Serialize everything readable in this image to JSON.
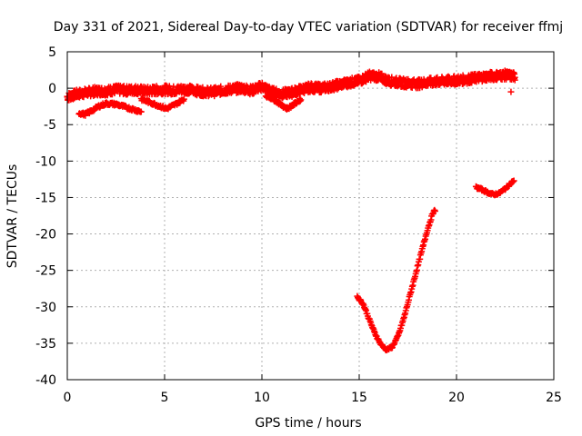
{
  "chart_data": {
    "type": "scatter",
    "title": "Day 331 of 2021, Sidereal Day-to-day VTEC variation (SDTVAR) for receiver ffmj",
    "xlabel": "GPS time / hours",
    "ylabel": "SDTVAR / TECUs",
    "xlim": [
      0,
      25
    ],
    "ylim": [
      -40,
      5
    ],
    "xticks": [
      0,
      5,
      10,
      15,
      20,
      25
    ],
    "yticks": [
      5,
      0,
      -5,
      -10,
      -15,
      -20,
      -25,
      -30,
      -35,
      -40
    ],
    "grid": true,
    "marker_color": "#ff0000",
    "series": [
      {
        "name": "main-band",
        "band_half_width": 0.6,
        "x": [
          0,
          0.5,
          1,
          1.5,
          2,
          2.5,
          3,
          3.5,
          4,
          4.5,
          5,
          5.5,
          6,
          6.5,
          7,
          7.5,
          8,
          8.5,
          9,
          9.5,
          10,
          10.5,
          11,
          11.5,
          12,
          12.5,
          13,
          13.5,
          14,
          14.5,
          15,
          15.5,
          16,
          16.5,
          17,
          17.5,
          18,
          18.5,
          19,
          19.5,
          20,
          20.5,
          21,
          21.5,
          22,
          22.5,
          23
        ],
        "y": [
          -1.2,
          -0.8,
          -0.6,
          -0.4,
          -0.4,
          -0.2,
          -0.3,
          -0.2,
          -0.4,
          -0.3,
          -0.2,
          -0.3,
          -0.1,
          -0.3,
          -0.5,
          -0.5,
          -0.3,
          -0.1,
          0,
          -0.3,
          0.3,
          -0.5,
          -0.8,
          -0.6,
          -0.2,
          0.1,
          0,
          0.2,
          0.5,
          0.8,
          1.0,
          1.7,
          1.6,
          1.0,
          0.8,
          0.7,
          0.6,
          0.8,
          0.9,
          1.0,
          1.1,
          1.2,
          1.4,
          1.6,
          1.7,
          1.8,
          1.6
        ]
      },
      {
        "name": "lower-arc-1",
        "band_half_width": 0.2,
        "x": [
          0.6,
          0.9,
          1.2,
          1.6,
          2.0,
          2.5,
          3.0,
          3.5,
          3.8
        ],
        "y": [
          -3.4,
          -3.6,
          -3.2,
          -2.5,
          -2.1,
          -2.2,
          -2.6,
          -3.0,
          -3.2
        ]
      },
      {
        "name": "lower-arc-2",
        "band_half_width": 0.2,
        "x": [
          3.8,
          4.3,
          4.8,
          5.1,
          5.5,
          6.0
        ],
        "y": [
          -1.5,
          -2.0,
          -2.5,
          -2.8,
          -2.3,
          -1.5
        ]
      },
      {
        "name": "lower-arc-3",
        "band_half_width": 0.2,
        "x": [
          10.2,
          10.6,
          11.0,
          11.3,
          11.6,
          12.0
        ],
        "y": [
          -1.0,
          -1.5,
          -2.3,
          -2.8,
          -2.3,
          -1.5
        ]
      },
      {
        "name": "deep-arc",
        "band_half_width": 0.15,
        "x": [
          14.9,
          15.2,
          15.5,
          15.8,
          16.1,
          16.4,
          16.7,
          17.0,
          17.3,
          17.6,
          17.9,
          18.2,
          18.5,
          18.8,
          18.9
        ],
        "y": [
          -28.6,
          -29.6,
          -31.6,
          -33.6,
          -35.1,
          -35.9,
          -35.5,
          -34.0,
          -31.5,
          -28.5,
          -25.5,
          -22.5,
          -19.5,
          -17.0,
          -16.8
        ]
      },
      {
        "name": "upper-right-arc",
        "band_half_width": 0.15,
        "x": [
          21.0,
          21.3,
          21.6,
          21.9,
          22.2,
          22.5,
          22.8,
          22.95
        ],
        "y": [
          -13.6,
          -13.9,
          -14.3,
          -14.6,
          -14.4,
          -13.8,
          -13.0,
          -12.7
        ]
      },
      {
        "name": "isolated-point",
        "band_half_width": 0,
        "x": [
          22.8
        ],
        "y": [
          -0.5
        ]
      }
    ]
  }
}
